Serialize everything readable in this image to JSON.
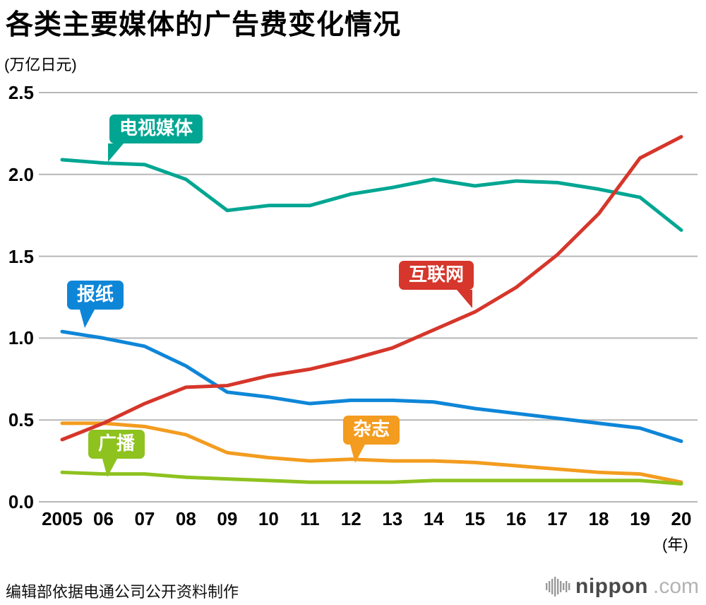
{
  "header": {
    "title": "各类主要媒体的广告费变化情况",
    "unit_label": "(万亿日元)",
    "year_label": "(年)"
  },
  "chart_data": {
    "type": "line",
    "title": "各类主要媒体的广告费变化情况",
    "ylabel": "(万亿日元)",
    "xlabel": "(年)",
    "ylim": [
      0,
      2.5
    ],
    "yticks": [
      0,
      0.5,
      1.0,
      1.5,
      2.0,
      2.5
    ],
    "ytick_labels": [
      "0.0",
      "0.5",
      "1.0",
      "1.5",
      "2.0",
      "2.5"
    ],
    "grid": true,
    "grid_color": "#b7b7b7",
    "legend": "colored callout bubbles placed on chart",
    "categories": [
      "2005",
      "06",
      "07",
      "08",
      "09",
      "10",
      "11",
      "12",
      "13",
      "14",
      "15",
      "16",
      "17",
      "18",
      "19",
      "20"
    ],
    "series": [
      {
        "name": "电视媒体",
        "color": "#00a692",
        "values": [
          2.09,
          2.07,
          2.06,
          1.97,
          1.78,
          1.81,
          1.81,
          1.88,
          1.92,
          1.97,
          1.93,
          1.96,
          1.95,
          1.91,
          1.86,
          1.66
        ]
      },
      {
        "name": "报纸",
        "color": "#0e86d8",
        "values": [
          1.04,
          1.0,
          0.95,
          0.83,
          0.67,
          0.64,
          0.6,
          0.62,
          0.62,
          0.61,
          0.57,
          0.54,
          0.51,
          0.48,
          0.45,
          0.37
        ]
      },
      {
        "name": "互联网",
        "color": "#d6362b",
        "values": [
          0.38,
          0.48,
          0.6,
          0.7,
          0.71,
          0.77,
          0.81,
          0.87,
          0.94,
          1.05,
          1.16,
          1.31,
          1.51,
          1.76,
          2.1,
          2.23
        ]
      },
      {
        "name": "杂志",
        "color": "#f39c1f",
        "values": [
          0.48,
          0.48,
          0.46,
          0.41,
          0.3,
          0.27,
          0.25,
          0.26,
          0.25,
          0.25,
          0.24,
          0.22,
          0.2,
          0.18,
          0.17,
          0.12
        ]
      },
      {
        "name": "广播",
        "color": "#8ec21f",
        "values": [
          0.18,
          0.17,
          0.17,
          0.15,
          0.14,
          0.13,
          0.12,
          0.12,
          0.12,
          0.13,
          0.13,
          0.13,
          0.13,
          0.13,
          0.13,
          0.11
        ]
      }
    ]
  },
  "footer": {
    "credit": "编辑部依据电通公司公开资料制作",
    "logo_text": "nippon",
    "logo_suffix": ".com"
  }
}
